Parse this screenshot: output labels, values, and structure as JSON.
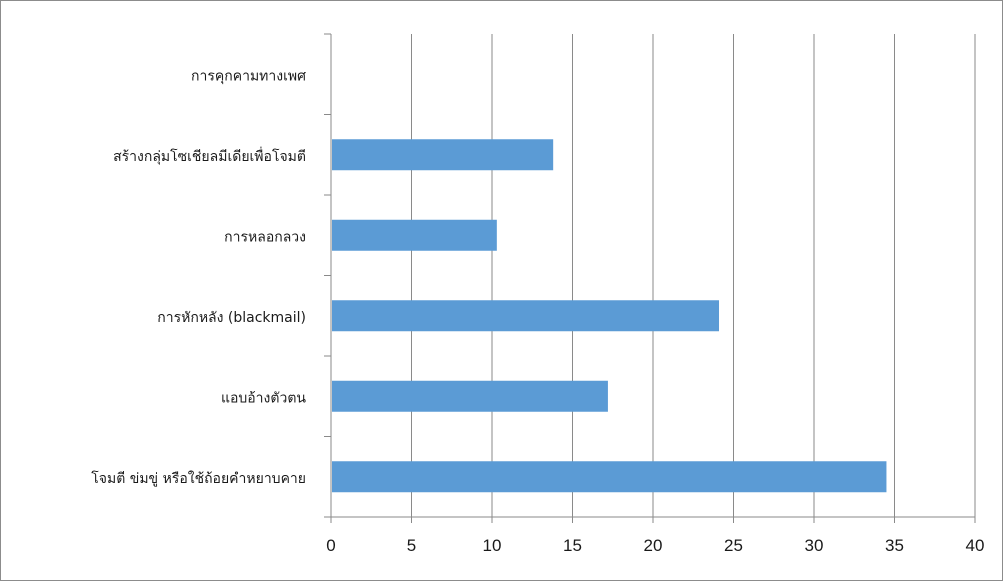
{
  "chart_data": {
    "type": "bar",
    "orientation": "horizontal",
    "categories": [
      "การคุกคามทางเพศ",
      "สร้างกลุ่มโซเชียลมีเดียเพื่อโจมตี",
      "การหลอกลวง",
      "การหักหลัง (blackmail)",
      "แอบอ้างตัวตน",
      "โจมตี ข่มขู่ หรือใช้ถ้อยคำหยาบคาย"
    ],
    "values": [
      0,
      13.8,
      10.3,
      24.1,
      17.2,
      34.5
    ],
    "xlim": [
      0,
      40
    ],
    "xticks": [
      "0",
      "5",
      "10",
      "15",
      "20",
      "25",
      "30",
      "35",
      "40"
    ],
    "grid": "vertical",
    "legend": "none",
    "bar_color": "#5b9bd5"
  }
}
